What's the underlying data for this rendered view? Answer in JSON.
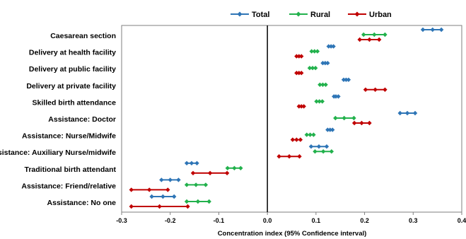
{
  "chart_data": {
    "type": "scatter",
    "subtype": "forest-plot-with-error-bars",
    "xlabel": "Concentration index (95% Confidence interval)",
    "ylabel": "",
    "xlim": [
      -0.3,
      0.4
    ],
    "xticks": [
      "-0.3",
      "-0.2",
      "-0.1",
      "0.0",
      "0.1",
      "0.2",
      "0.3",
      "0.4"
    ],
    "xtick_values": [
      -0.3,
      -0.2,
      -0.1,
      0.0,
      0.1,
      0.2,
      0.3,
      0.4
    ],
    "grid": false,
    "legend_position": "top-center",
    "categories": [
      "Caesarean section",
      "Delivery at health facility",
      "Delivery at public facility",
      "Delivery at private facility",
      "Skilled birth attendance",
      "Assistance: Doctor",
      "Assistance: Nurse/Midwife",
      "Assistance: Auxiliary Nurse/midwife",
      "Traditional birth attendant",
      "Assistance: Friend/relative",
      "Assistance: No one"
    ],
    "series": [
      {
        "name": "Total",
        "color": "#2E75B6",
        "points": [
          {
            "est": 0.34,
            "lo": 0.32,
            "hi": 0.358
          },
          {
            "est": 0.131,
            "lo": 0.126,
            "hi": 0.136
          },
          {
            "est": 0.119,
            "lo": 0.114,
            "hi": 0.124
          },
          {
            "est": 0.162,
            "lo": 0.157,
            "hi": 0.167
          },
          {
            "est": 0.141,
            "lo": 0.137,
            "hi": 0.146
          },
          {
            "est": 0.288,
            "lo": 0.273,
            "hi": 0.304
          },
          {
            "est": 0.129,
            "lo": 0.124,
            "hi": 0.134
          },
          {
            "est": 0.106,
            "lo": 0.09,
            "hi": 0.122
          },
          {
            "est": -0.156,
            "lo": -0.166,
            "hi": -0.145
          },
          {
            "est": -0.2,
            "lo": -0.218,
            "hi": -0.183
          },
          {
            "est": -0.215,
            "lo": -0.238,
            "hi": -0.192
          }
        ]
      },
      {
        "name": "Rural",
        "color": "#22B14C",
        "points": [
          {
            "est": 0.22,
            "lo": 0.198,
            "hi": 0.242
          },
          {
            "est": 0.097,
            "lo": 0.091,
            "hi": 0.103
          },
          {
            "est": 0.093,
            "lo": 0.087,
            "hi": 0.099
          },
          {
            "est": 0.114,
            "lo": 0.108,
            "hi": 0.12
          },
          {
            "est": 0.107,
            "lo": 0.101,
            "hi": 0.113
          },
          {
            "est": 0.158,
            "lo": 0.14,
            "hi": 0.178
          },
          {
            "est": 0.088,
            "lo": 0.081,
            "hi": 0.095
          },
          {
            "est": 0.115,
            "lo": 0.098,
            "hi": 0.132
          },
          {
            "est": -0.068,
            "lo": -0.082,
            "hi": -0.055
          },
          {
            "est": -0.147,
            "lo": -0.166,
            "hi": -0.127
          },
          {
            "est": -0.143,
            "lo": -0.166,
            "hi": -0.12
          }
        ]
      },
      {
        "name": "Urban",
        "color": "#C00000",
        "points": [
          {
            "est": 0.21,
            "lo": 0.19,
            "hi": 0.23
          },
          {
            "est": 0.065,
            "lo": 0.06,
            "hi": 0.07
          },
          {
            "est": 0.065,
            "lo": 0.06,
            "hi": 0.07
          },
          {
            "est": 0.222,
            "lo": 0.202,
            "hi": 0.242
          },
          {
            "est": 0.07,
            "lo": 0.065,
            "hi": 0.075
          },
          {
            "est": 0.194,
            "lo": 0.179,
            "hi": 0.21
          },
          {
            "est": 0.06,
            "lo": 0.052,
            "hi": 0.068
          },
          {
            "est": 0.045,
            "lo": 0.024,
            "hi": 0.066
          },
          {
            "est": -0.118,
            "lo": -0.153,
            "hi": -0.083
          },
          {
            "est": -0.243,
            "lo": -0.28,
            "hi": -0.205
          },
          {
            "est": -0.222,
            "lo": -0.28,
            "hi": -0.164
          }
        ]
      }
    ]
  }
}
